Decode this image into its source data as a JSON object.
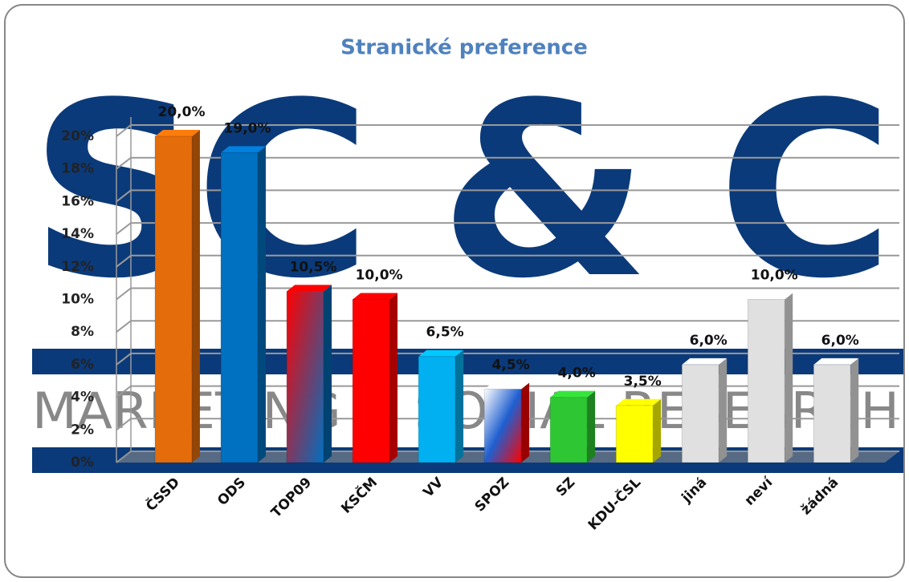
{
  "chart_data": {
    "type": "bar",
    "title": "Stranické preference",
    "watermark": [
      "SC & C",
      "MARKETING & SOCIAL RESEARCH"
    ],
    "categories": [
      "ČSSD",
      "ODS",
      "TOP09",
      "KSČM",
      "VV",
      "SPOZ",
      "SZ",
      "KDU-ČSL",
      "jiná",
      "neví",
      "žádná"
    ],
    "values": [
      20,
      19,
      10.5,
      10,
      6.5,
      4.5,
      4,
      3.5,
      6,
      10,
      6
    ],
    "value_labels": [
      "20,0%",
      "19,0%",
      "10,5%",
      "10,0%",
      "6,5%",
      "4,5%",
      "4,0%",
      "3,5%",
      "6,0%",
      "10,0%",
      "6,0%"
    ],
    "colors": [
      "#e46c0a",
      "#0070c0",
      [
        "#ff0000",
        "#0070c0"
      ],
      "#ff0000",
      "#00b0f0",
      [
        "#ffffff",
        "#1f5fd0",
        "#ff0000"
      ],
      "#2ec733",
      "#ffff00",
      "#e0e0e0",
      "#e0e0e0",
      "#e0e0e0"
    ],
    "ylim": [
      0,
      20
    ],
    "yticks": [
      {
        "value": 0,
        "label": "0%"
      },
      {
        "value": 2,
        "label": "2%"
      },
      {
        "value": 4,
        "label": "4%"
      },
      {
        "value": 6,
        "label": "6%"
      },
      {
        "value": 8,
        "label": "8%"
      },
      {
        "value": 10,
        "label": "10%"
      },
      {
        "value": 12,
        "label": "12%"
      },
      {
        "value": 14,
        "label": "14%"
      },
      {
        "value": 16,
        "label": "16%"
      },
      {
        "value": 18,
        "label": "18%"
      },
      {
        "value": 20,
        "label": "20%"
      }
    ],
    "grid": true
  }
}
